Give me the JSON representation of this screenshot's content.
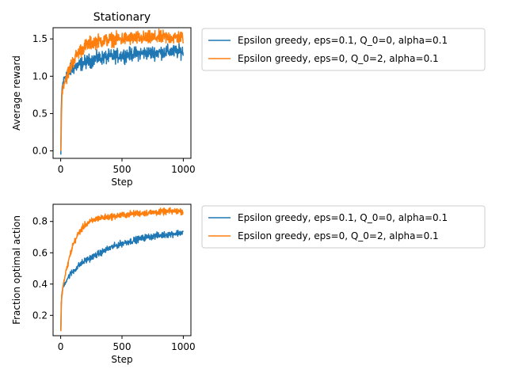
{
  "figure": {
    "title": "Stationary"
  },
  "colors": {
    "series_0": "#1f77b4",
    "series_1": "#ff7f0e",
    "axis": "#000000",
    "legend_border": "#cccccc"
  },
  "chart_data": [
    {
      "type": "line",
      "title": "Stationary",
      "xlabel": "Step",
      "ylabel": "Average reward",
      "xlim": [
        -62,
        1062
      ],
      "ylim": [
        -0.1,
        1.65
      ],
      "xticks": [
        0,
        500,
        1000
      ],
      "xtick_labels": [
        "0",
        "500",
        "1000"
      ],
      "yticks": [
        0.0,
        0.5,
        1.0,
        1.5
      ],
      "ytick_labels": [
        "0.0",
        "0.5",
        "1.0",
        "1.5"
      ],
      "grid": false,
      "legend_position": "outside-right",
      "series": [
        {
          "name": "Epsilon greedy, eps=0.1, Q_0=0, alpha=0.1",
          "color": "#1f77b4",
          "x": [
            1,
            5,
            10,
            20,
            30,
            50,
            75,
            100,
            150,
            200,
            250,
            300,
            400,
            500,
            600,
            700,
            800,
            900,
            1000
          ],
          "y": [
            -0.05,
            0.55,
            0.82,
            0.92,
            0.98,
            1.03,
            1.07,
            1.11,
            1.15,
            1.19,
            1.21,
            1.24,
            1.26,
            1.28,
            1.3,
            1.31,
            1.32,
            1.33,
            1.33
          ]
        },
        {
          "name": "Epsilon greedy, eps=0, Q_0=2, alpha=0.1",
          "color": "#ff7f0e",
          "x": [
            1,
            5,
            10,
            20,
            30,
            50,
            75,
            100,
            150,
            200,
            250,
            300,
            400,
            500,
            600,
            700,
            800,
            900,
            1000
          ],
          "y": [
            0.0,
            0.3,
            0.78,
            0.86,
            0.92,
            1.0,
            1.1,
            1.2,
            1.33,
            1.4,
            1.45,
            1.47,
            1.49,
            1.5,
            1.51,
            1.51,
            1.52,
            1.52,
            1.52
          ]
        }
      ]
    },
    {
      "type": "line",
      "title": "",
      "xlabel": "Step",
      "ylabel": "Fraction optimal action",
      "xlim": [
        -62,
        1062
      ],
      "ylim": [
        0.07,
        0.91
      ],
      "xticks": [
        0,
        500,
        1000
      ],
      "xtick_labels": [
        "0",
        "500",
        "1000"
      ],
      "yticks": [
        0.2,
        0.4,
        0.6,
        0.8
      ],
      "ytick_labels": [
        "0.2",
        "0.4",
        "0.6",
        "0.8"
      ],
      "grid": false,
      "legend_position": "outside-right",
      "series": [
        {
          "name": "Epsilon greedy, eps=0.1, Q_0=0, alpha=0.1",
          "color": "#1f77b4",
          "x": [
            1,
            5,
            10,
            20,
            30,
            50,
            75,
            100,
            150,
            200,
            250,
            300,
            400,
            500,
            600,
            700,
            800,
            900,
            1000
          ],
          "y": [
            0.1,
            0.28,
            0.34,
            0.38,
            0.4,
            0.43,
            0.46,
            0.48,
            0.52,
            0.55,
            0.57,
            0.59,
            0.63,
            0.66,
            0.68,
            0.7,
            0.71,
            0.72,
            0.73
          ]
        },
        {
          "name": "Epsilon greedy, eps=0, Q_0=2, alpha=0.1",
          "color": "#ff7f0e",
          "x": [
            1,
            5,
            10,
            20,
            30,
            50,
            75,
            100,
            150,
            200,
            250,
            300,
            400,
            500,
            600,
            700,
            800,
            900,
            1000
          ],
          "y": [
            0.1,
            0.25,
            0.33,
            0.39,
            0.43,
            0.5,
            0.58,
            0.65,
            0.73,
            0.78,
            0.8,
            0.82,
            0.83,
            0.84,
            0.85,
            0.855,
            0.86,
            0.865,
            0.865
          ]
        }
      ]
    }
  ]
}
